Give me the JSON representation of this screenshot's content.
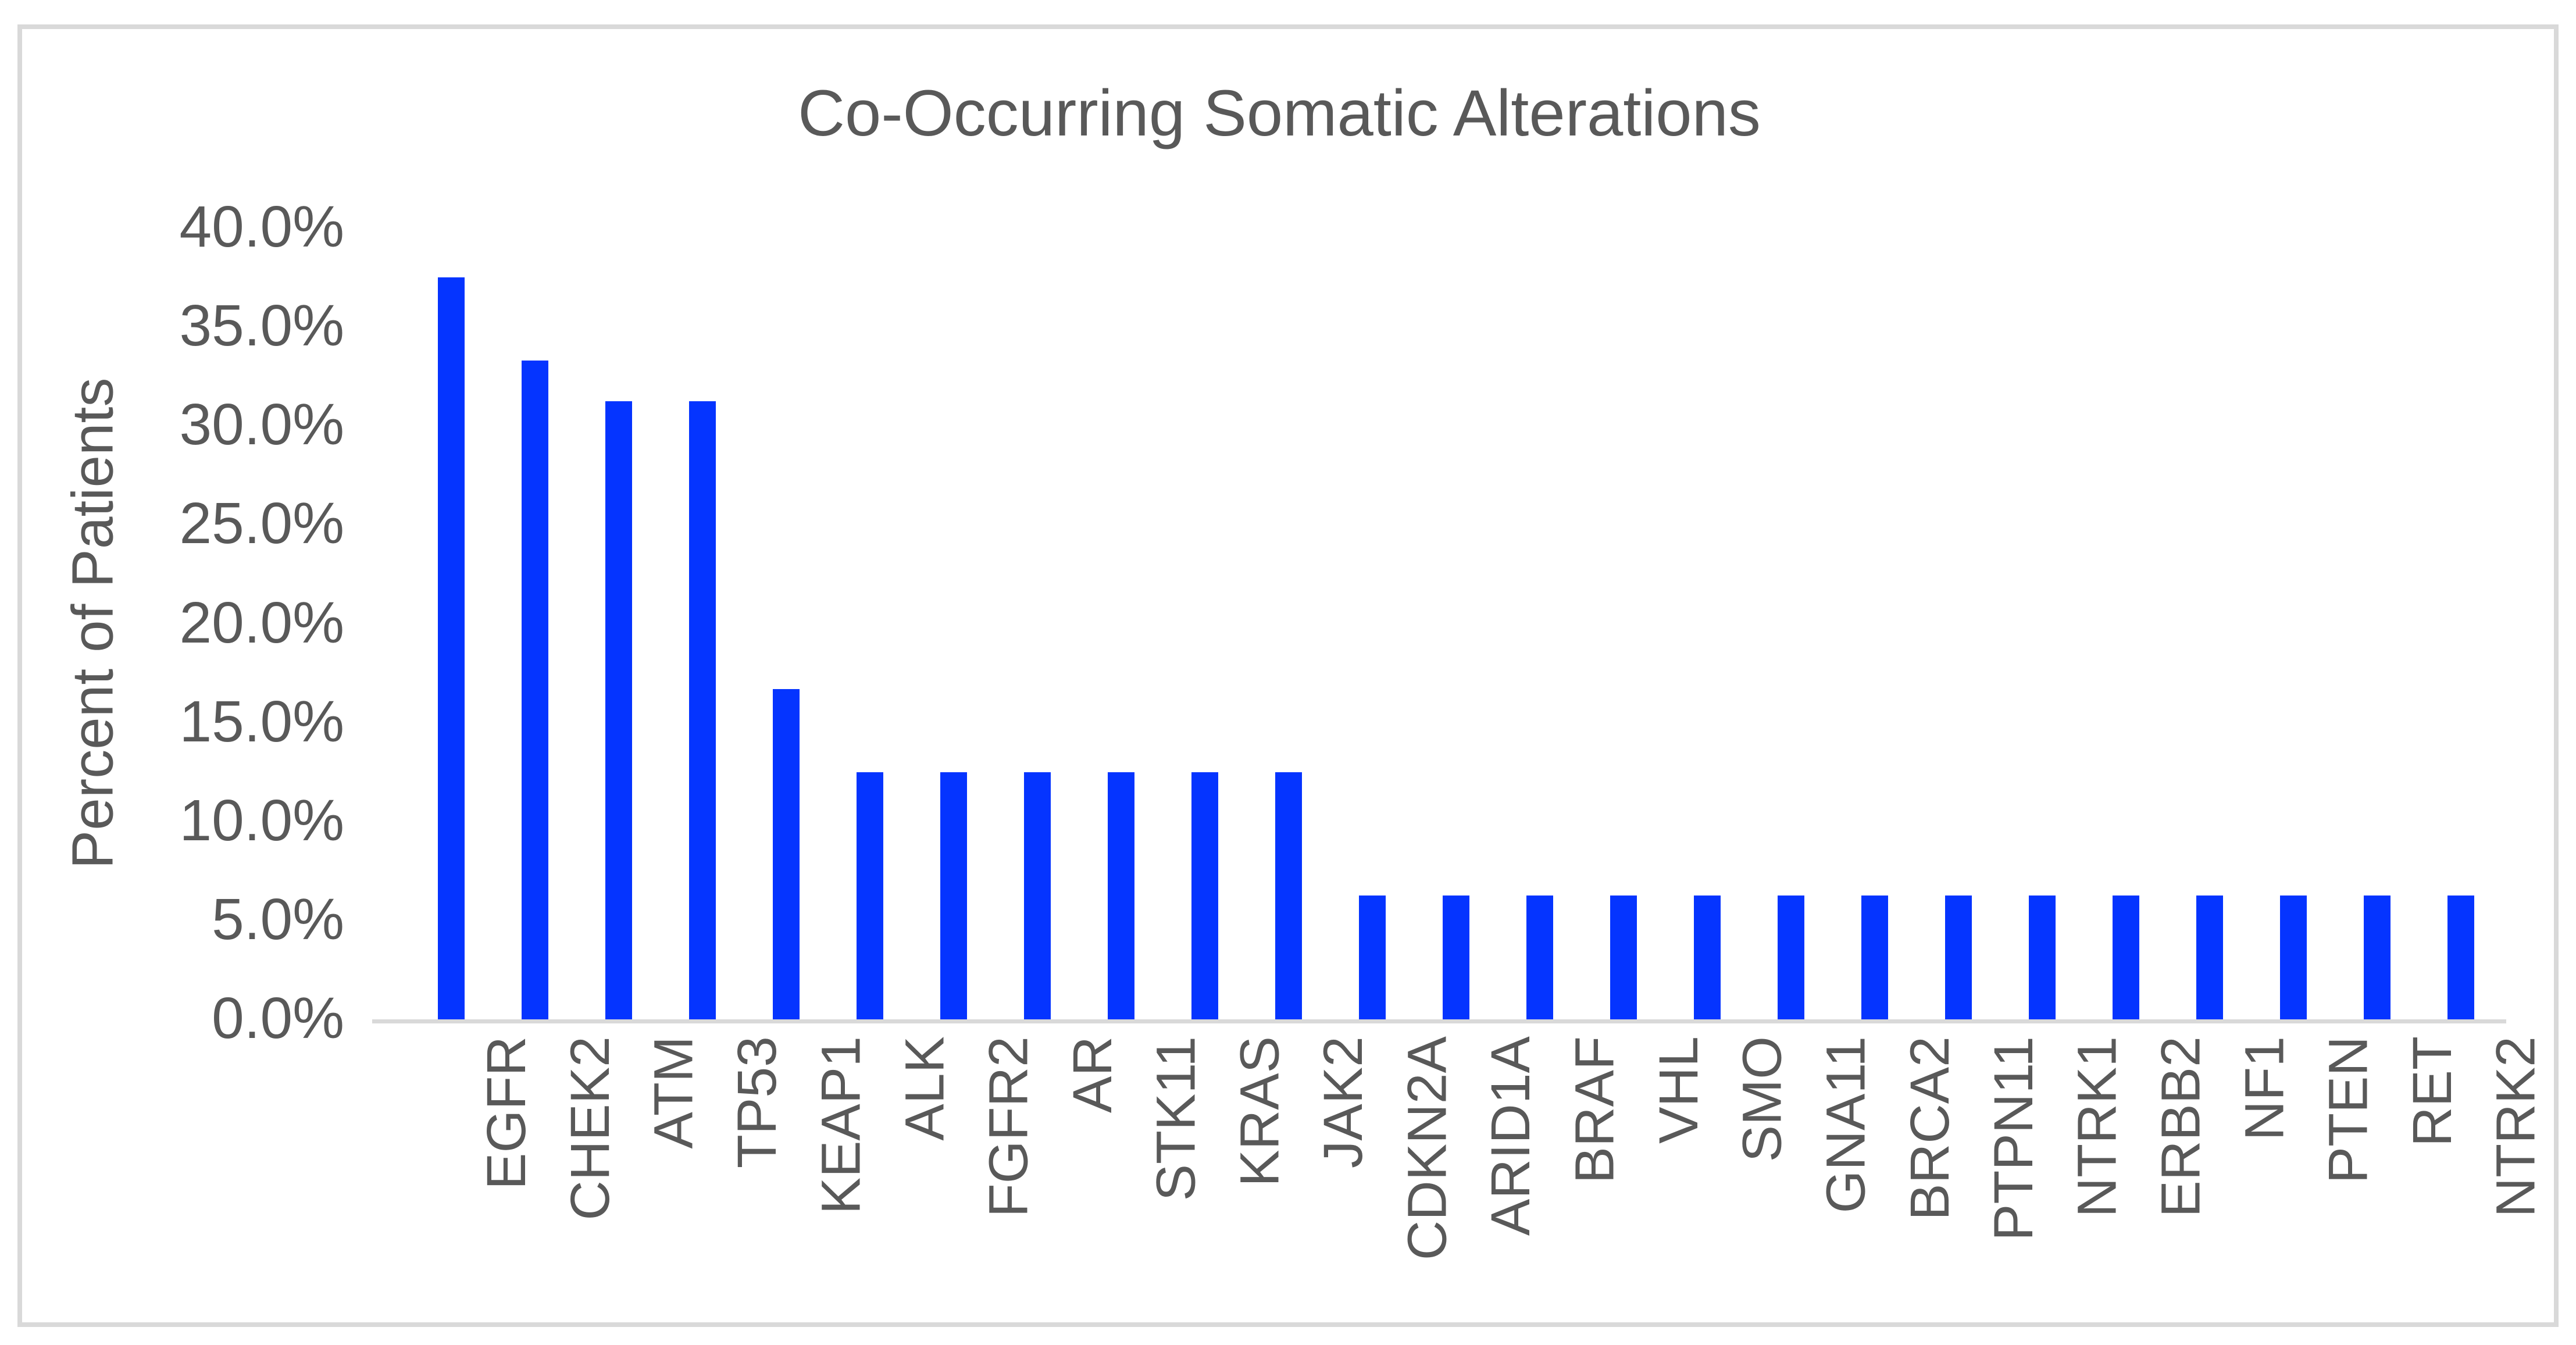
{
  "figure": {
    "background_color": "#ffffff",
    "border_color": "#d9d9d9",
    "text_color": "#595959",
    "axis_line_color": "#d9d9d9"
  },
  "chart_data": {
    "type": "bar",
    "title": "Co-Occurring Somatic Alterations",
    "xlabel": "",
    "ylabel": "Percent of Patients",
    "categories": [
      "EGFR",
      "CHEK2",
      "ATM",
      "TP53",
      "KEAP1",
      "ALK",
      "FGFR2",
      "AR",
      "STK11",
      "KRAS",
      "JAK2",
      "CDKN2A",
      "ARID1A",
      "BRAF",
      "VHL",
      "SMO",
      "GNA11",
      "BRCA2",
      "PTPN11",
      "NTRK1",
      "ERBB2",
      "NF1",
      "PTEN",
      "RET",
      "NTRK2"
    ],
    "values": [
      37.5,
      33.3,
      31.25,
      31.25,
      16.7,
      12.5,
      12.5,
      12.5,
      12.5,
      12.5,
      12.5,
      6.25,
      6.25,
      6.25,
      6.25,
      6.25,
      6.25,
      6.25,
      6.25,
      6.25,
      6.25,
      6.25,
      6.25,
      6.25,
      6.25
    ],
    "value_unit": "%",
    "bar_color": "#0534ff",
    "ylim": [
      0,
      40
    ],
    "ytick_step": 5,
    "ytick_labels": [
      "0.0%",
      "5.0%",
      "10.0%",
      "15.0%",
      "20.0%",
      "25.0%",
      "30.0%",
      "35.0%",
      "40.0%"
    ],
    "grid": false,
    "legend": null,
    "x_labels_rotation_degrees": 90,
    "plot_background": "#ffffff"
  }
}
